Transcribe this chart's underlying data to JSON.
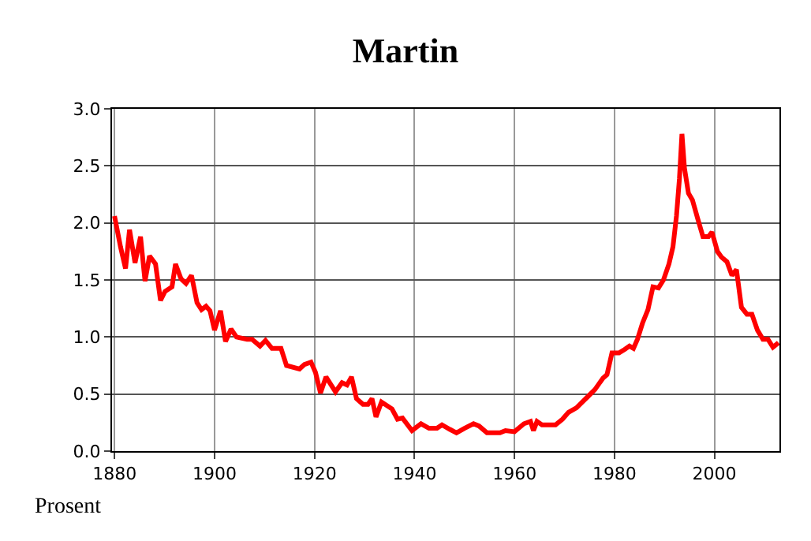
{
  "chart_data": {
    "type": "line",
    "title": "Martin",
    "ylabel": "Prosent",
    "x": [
      1880,
      1881.2,
      1882.2,
      1883,
      1884.1,
      1885.2,
      1886.1,
      1887,
      1888.2,
      1889.2,
      1890.1,
      1891.5,
      1892.2,
      1893.3,
      1894.3,
      1895.4,
      1896.5,
      1897.4,
      1898.3,
      1899.1,
      1900,
      1901.2,
      1902.2,
      1903.3,
      1904.4,
      1906.5,
      1907.5,
      1909.1,
      1910.2,
      1911.5,
      1913.3,
      1914.4,
      1917,
      1918,
      1919.3,
      1920.2,
      1921.2,
      1922.3,
      1924.2,
      1925.5,
      1926.5,
      1927.4,
      1928.4,
      1929.7,
      1930.7,
      1931.5,
      1932.3,
      1933.4,
      1935.5,
      1936.6,
      1937.6,
      1939.5,
      1941.3,
      1942.9,
      1944.5,
      1945.5,
      1947.1,
      1948.4,
      1950,
      1951.8,
      1952.9,
      1954.5,
      1957.1,
      1958.2,
      1960,
      1961.9,
      1963.2,
      1963.8,
      1964.5,
      1965.5,
      1968.2,
      1969.6,
      1970.8,
      1972.4,
      1974.5,
      1976.1,
      1977.7,
      1978.5,
      1979.5,
      1980.9,
      1982,
      1983,
      1983.8,
      1984.6,
      1985.6,
      1986.7,
      1987.7,
      1988.8,
      1989.8,
      1990.9,
      1991.7,
      1992.4,
      1993,
      1993.5,
      1994,
      1994.8,
      1995.6,
      1996.7,
      1997.7,
      1998.8,
      1999.5,
      2000.6,
      2001.4,
      2002.5,
      2003.5,
      2004.4,
      2005.4,
      2006.5,
      2007.5,
      2008.6,
      2009.7,
      2010.7,
      2011.7,
      2012.8
    ],
    "series": [
      {
        "color": "#ff0000",
        "values": [
          2.06,
          1.79,
          1.6,
          1.94,
          1.65,
          1.88,
          1.49,
          1.71,
          1.64,
          1.32,
          1.4,
          1.44,
          1.64,
          1.51,
          1.47,
          1.54,
          1.3,
          1.24,
          1.27,
          1.23,
          1.06,
          1.23,
          0.96,
          1.07,
          1.0,
          0.98,
          0.98,
          0.92,
          0.97,
          0.9,
          0.9,
          0.75,
          0.72,
          0.76,
          0.78,
          0.69,
          0.51,
          0.65,
          0.52,
          0.6,
          0.58,
          0.65,
          0.46,
          0.41,
          0.41,
          0.46,
          0.3,
          0.43,
          0.37,
          0.28,
          0.29,
          0.18,
          0.24,
          0.2,
          0.2,
          0.23,
          0.19,
          0.16,
          0.2,
          0.24,
          0.22,
          0.16,
          0.16,
          0.18,
          0.17,
          0.24,
          0.26,
          0.18,
          0.26,
          0.23,
          0.23,
          0.28,
          0.34,
          0.38,
          0.47,
          0.54,
          0.64,
          0.67,
          0.86,
          0.86,
          0.89,
          0.92,
          0.9,
          0.98,
          1.12,
          1.24,
          1.44,
          1.43,
          1.5,
          1.64,
          1.79,
          2.06,
          2.39,
          2.78,
          2.48,
          2.26,
          2.2,
          2.03,
          1.88,
          1.88,
          1.92,
          1.75,
          1.7,
          1.66,
          1.54,
          1.59,
          1.26,
          1.2,
          1.2,
          1.06,
          0.98,
          0.98,
          0.91,
          0.95
        ]
      }
    ],
    "xlim": [
      1879.5,
      2013
    ],
    "xticks": [
      1880,
      1900,
      1920,
      1940,
      1960,
      1980,
      2000
    ],
    "ylim": [
      0,
      3
    ],
    "yticks": [
      {
        "value": 0,
        "label": "0.0"
      },
      {
        "value": 0.5,
        "label": "0.5"
      },
      {
        "value": 1,
        "label": "1.0"
      },
      {
        "value": 1.5,
        "label": "1.5"
      },
      {
        "value": 2,
        "label": "2.0"
      },
      {
        "value": 2.5,
        "label": "2.5"
      },
      {
        "value": 3,
        "label": "3.0"
      }
    ],
    "grid": true,
    "legend": false,
    "marker": "none",
    "line_style": "solid"
  }
}
